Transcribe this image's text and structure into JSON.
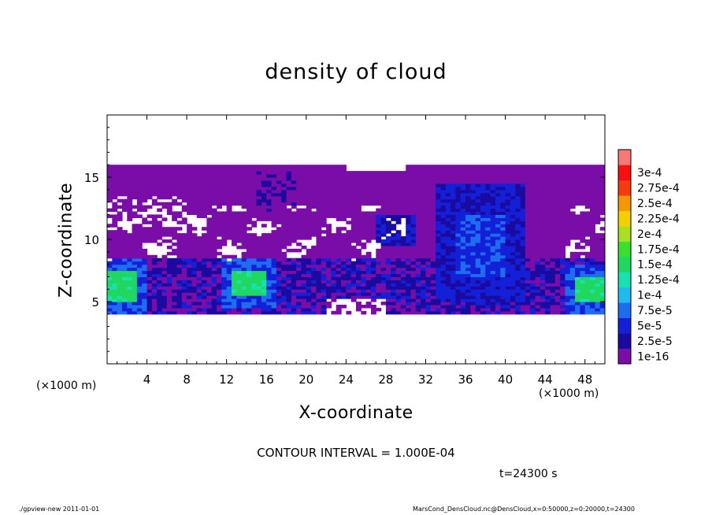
{
  "chart_data": {
    "type": "heatmap",
    "title": "density of cloud",
    "xlabel": "X-coordinate",
    "ylabel": "Z-coordinate",
    "x_unit_left": "(×1000 m)",
    "x_unit_right": "(×1000 m)",
    "xlim": [
      0,
      50
    ],
    "ylim": [
      0,
      20
    ],
    "x_ticks": [
      "4",
      "8",
      "12",
      "16",
      "20",
      "24",
      "28",
      "32",
      "36",
      "40",
      "44",
      "48"
    ],
    "y_ticks": [
      "5",
      "10",
      "15"
    ],
    "contour_interval": "CONTOUR INTERVAL = 1.000E-04",
    "time_label": "t=24300 s",
    "colorbar": {
      "labels": [
        "1e-16",
        "2.5e-5",
        "5e-5",
        "7.5e-5",
        "1e-4",
        "1.25e-4",
        "1.5e-4",
        "1.75e-4",
        "2e-4",
        "2.25e-4",
        "2.5e-4",
        "2.75e-4",
        "3e-4"
      ],
      "colors": [
        "#7a0ca8",
        "#1a0aa0",
        "#1420d8",
        "#1e6cf0",
        "#22b8f0",
        "#18e0b0",
        "#20d860",
        "#3ae030",
        "#a8e020",
        "#f4d000",
        "#f49800",
        "#f43c10",
        "#f81010",
        "#f87878"
      ]
    },
    "regions": {
      "cloud_layer_z": [
        4.0,
        16.0
      ],
      "upper_cloud_top_z": 16.0,
      "high_density_patches": [
        {
          "x": [
            0,
            3
          ],
          "z": [
            5,
            7.5
          ],
          "level": "1.25e-4"
        },
        {
          "x": [
            12.5,
            16
          ],
          "z": [
            5.5,
            7.5
          ],
          "level": "1.25e-4"
        },
        {
          "x": [
            47,
            50
          ],
          "z": [
            5,
            7
          ],
          "level": "1.25e-4"
        }
      ]
    }
  },
  "footer": {
    "left": "./gpview-new   2011-01-01",
    "right": "MarsCond_DensCloud.nc@DensCloud,x=0:50000,z=0:20000,t=24300"
  }
}
